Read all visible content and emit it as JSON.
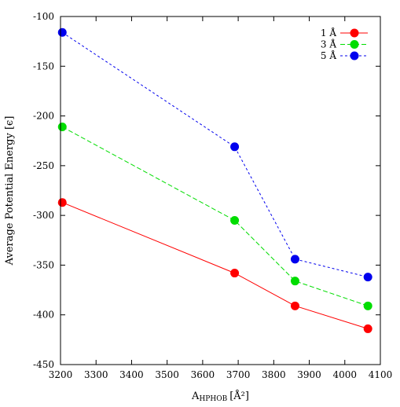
{
  "chart_data": {
    "type": "line",
    "title": "",
    "xlabel_main": "A",
    "xlabel_sub": "HPHOB",
    "xlabel_unit": "[Å²]",
    "ylabel": "Average Potential Energy [ϵ]",
    "xlim": [
      3200,
      4100
    ],
    "ylim": [
      -450,
      -100
    ],
    "xticks": [
      3200,
      3300,
      3400,
      3500,
      3600,
      3700,
      3800,
      3900,
      4000,
      4100
    ],
    "yticks": [
      -100,
      -150,
      -200,
      -250,
      -300,
      -350,
      -400,
      -450
    ],
    "grid": false,
    "legend_position": "top-right",
    "x": [
      3205,
      3690,
      3860,
      4065
    ],
    "series": [
      {
        "name": "1 Å",
        "color": "#ff0000",
        "dash": "solid",
        "values": [
          -287,
          -358,
          -391,
          -414
        ]
      },
      {
        "name": "3 Å",
        "color": "#00dd00",
        "dash": "dashed",
        "values": [
          -211,
          -305,
          -366,
          -391
        ]
      },
      {
        "name": "5 Å",
        "color": "#0000ee",
        "dash": "dotted",
        "values": [
          -116,
          -231,
          -344,
          -362
        ]
      }
    ]
  }
}
